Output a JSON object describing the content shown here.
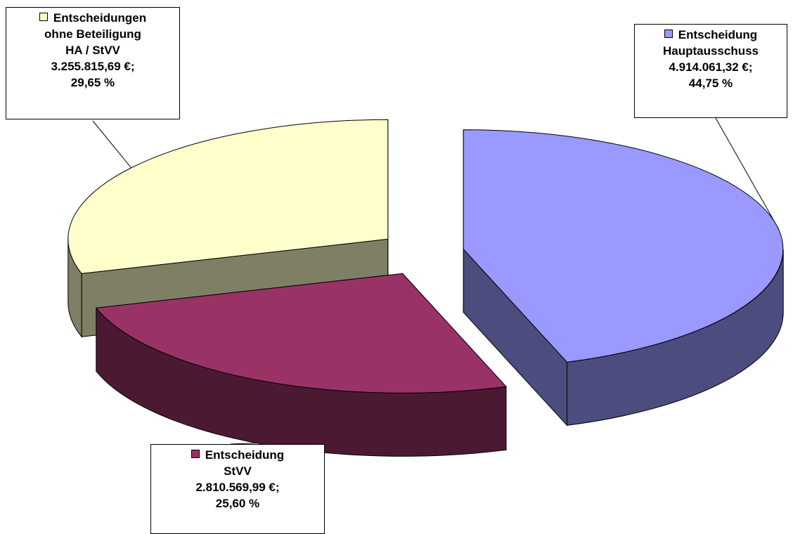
{
  "chart_data": {
    "type": "pie",
    "title": "",
    "exploded": true,
    "three_d": true,
    "slices": [
      {
        "label_lines": [
          "Entscheidung",
          "Hauptausschuss"
        ],
        "value": 4914061.32,
        "value_text": "4.914.061,32 €;",
        "percent": 44.75,
        "percent_text": "44,75 %",
        "color_top": "#9999FF",
        "color_side": "#4C4C7F"
      },
      {
        "label_lines": [
          "Entscheidung",
          "StVV"
        ],
        "value": 2810569.99,
        "value_text": "2.810.569,99 €;",
        "percent": 25.6,
        "percent_text": "25,60 %",
        "color_top": "#993366",
        "color_side": "#4C1933"
      },
      {
        "label_lines": [
          "Entscheidungen",
          "ohne Beteiligung",
          "HA / StVV"
        ],
        "value": 3255815.69,
        "value_text": "3.255.815,69 €;",
        "percent": 29.65,
        "percent_text": "29,65 %",
        "color_top": "#FFFFCC",
        "color_side": "#7F7F66"
      }
    ]
  }
}
